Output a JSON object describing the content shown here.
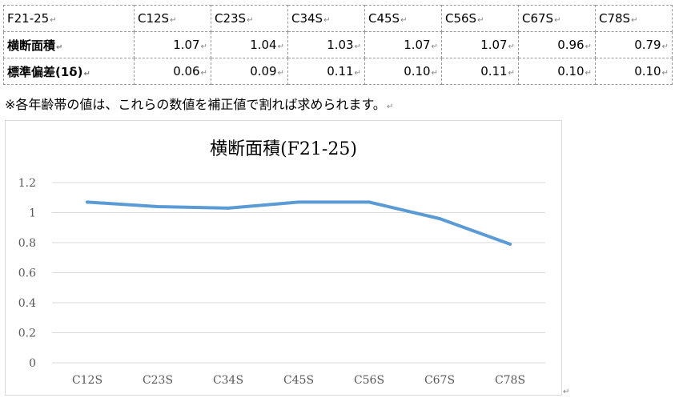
{
  "table": {
    "corner": "F21-25",
    "columns": [
      "C12S",
      "C23S",
      "C34S",
      "C45S",
      "C56S",
      "C67S",
      "C78S"
    ],
    "rows": [
      {
        "label": "横断面積",
        "values": [
          "1.07",
          "1.04",
          "1.03",
          "1.07",
          "1.07",
          "0.96",
          "0.79"
        ]
      },
      {
        "label": "標準偏差(1δ)",
        "values": [
          "0.06",
          "0.09",
          "0.11",
          "0.10",
          "0.11",
          "0.10",
          "0.10"
        ]
      }
    ]
  },
  "note": "※各年齢帯の値は、これらの数値を補正値で割れば求められます。",
  "chart_data": {
    "type": "line",
    "title": "横断面積(F21-25)",
    "categories": [
      "C12S",
      "C23S",
      "C34S",
      "C45S",
      "C56S",
      "C67S",
      "C78S"
    ],
    "series": [
      {
        "values": [
          1.07,
          1.04,
          1.03,
          1.07,
          1.07,
          0.96,
          0.79
        ]
      }
    ],
    "ylim": [
      0,
      1.2
    ],
    "yticks": [
      "0",
      "0.2",
      "0.4",
      "0.6",
      "0.8",
      "1",
      "1.2"
    ],
    "grid": true,
    "line_color": "#5b9bd5",
    "grid_color": "#d9d9d9",
    "label_color": "#595959"
  }
}
